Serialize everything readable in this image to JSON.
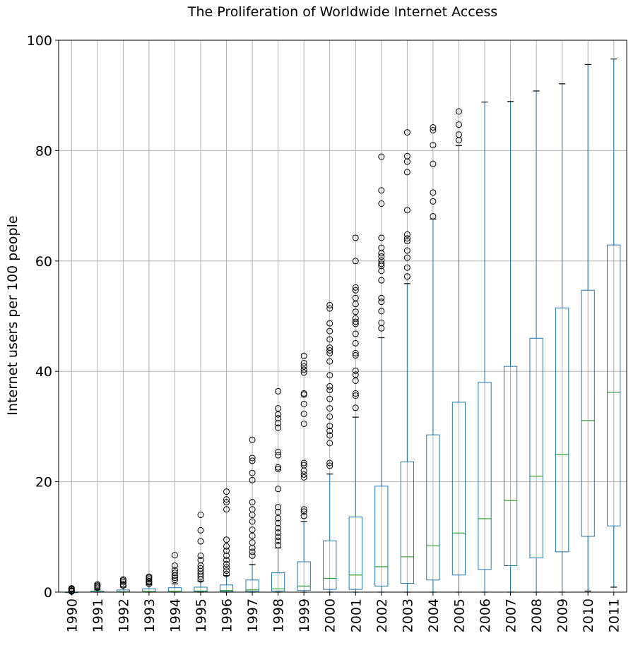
{
  "chart_data": {
    "type": "box",
    "title": "The Proliferation of Worldwide Internet Access",
    "xlabel": "",
    "ylabel": "Internet users per 100 people",
    "ylim": [
      0,
      100
    ],
    "yticks": [
      0,
      20,
      40,
      60,
      80,
      100
    ],
    "grid": true,
    "colors": {
      "box": "#1f77b4",
      "median": "#2ca02c",
      "grid": "#b0b0b0",
      "outlier": "#000000"
    },
    "categories": [
      "1990",
      "1991",
      "1992",
      "1993",
      "1994",
      "1995",
      "1996",
      "1997",
      "1998",
      "1999",
      "2000",
      "2001",
      "2002",
      "2003",
      "2004",
      "2005",
      "2006",
      "2007",
      "2008",
      "2009",
      "2010",
      "2011"
    ],
    "boxes": [
      {
        "q1": 0,
        "median": 0,
        "q3": 0,
        "whislo": 0,
        "whishi": 0,
        "fliers": [
          0.1,
          0.2,
          0.3,
          0.5,
          0.6,
          0.7
        ]
      },
      {
        "q1": 0,
        "median": 0.02,
        "q3": 0.2,
        "whislo": 0,
        "whishi": 0.4,
        "fliers": [
          0.8,
          1.0,
          1.2,
          1.4
        ]
      },
      {
        "q1": 0,
        "median": 0.05,
        "q3": 0.4,
        "whislo": 0,
        "whishi": 0.9,
        "fliers": [
          1.2,
          1.4,
          1.8,
          2.1,
          2.3
        ]
      },
      {
        "q1": 0,
        "median": 0.1,
        "q3": 0.6,
        "whislo": 0,
        "whishi": 1.3,
        "fliers": [
          1.5,
          1.8,
          2.0,
          2.3,
          2.6,
          2.8
        ]
      },
      {
        "q1": 0,
        "median": 0.15,
        "q3": 0.8,
        "whislo": 0,
        "whishi": 1.5,
        "fliers": [
          2.2,
          2.6,
          3.0,
          3.5,
          4.0,
          4.8,
          6.7
        ]
      },
      {
        "q1": 0.05,
        "median": 0.2,
        "q3": 0.9,
        "whislo": 0,
        "whishi": 2.0,
        "fliers": [
          2.3,
          2.8,
          3.3,
          3.8,
          4.3,
          4.8,
          5.8,
          6.6,
          9.2,
          11.2,
          14.0
        ]
      },
      {
        "q1": 0.1,
        "median": 0.3,
        "q3": 1.3,
        "whislo": 0,
        "whishi": 3.0,
        "fliers": [
          3.3,
          3.9,
          4.5,
          5.1,
          5.8,
          6.6,
          7.5,
          8.3,
          9.5,
          15.0,
          16.3,
          16.8,
          18.2
        ]
      },
      {
        "q1": 0.1,
        "median": 0.4,
        "q3": 2.2,
        "whislo": 0,
        "whishi": 5.0,
        "fliers": [
          6.6,
          7.3,
          8.0,
          9.0,
          10.2,
          11.3,
          12.8,
          14.0,
          15.0,
          16.3,
          20.3,
          21.6,
          23.8,
          24.3,
          27.6
        ]
      },
      {
        "q1": 0.2,
        "median": 0.6,
        "q3": 3.5,
        "whislo": 0,
        "whishi": 8.0,
        "fliers": [
          8.5,
          9.3,
          10.0,
          10.8,
          11.6,
          12.5,
          13.4,
          14.5,
          15.4,
          18.7,
          22.3,
          22.6,
          24.8,
          25.4,
          29.8,
          30.6,
          31.5,
          32.2,
          33.3,
          36.4
        ]
      },
      {
        "q1": 0.3,
        "median": 1.1,
        "q3": 5.5,
        "whislo": 0,
        "whishi": 12.8,
        "fliers": [
          13.8,
          14.6,
          15.0,
          20.8,
          21.3,
          22.0,
          23.0,
          23.4,
          30.5,
          32.3,
          34.1,
          35.8,
          36.0,
          39.8,
          40.3,
          40.9,
          41.5,
          42.8
        ]
      },
      {
        "q1": 0.5,
        "median": 2.5,
        "q3": 9.3,
        "whislo": 0,
        "whishi": 21.4,
        "fliers": [
          22.9,
          23.4,
          27.0,
          28.4,
          29.2,
          30.1,
          31.8,
          33.3,
          35.0,
          36.6,
          37.3,
          39.3,
          41.8,
          43.3,
          43.8,
          44.3,
          45.8,
          47.3,
          48.7,
          51.4,
          52.0
        ]
      },
      {
        "q1": 0.5,
        "median": 3.1,
        "q3": 13.6,
        "whislo": 0,
        "whishi": 31.7,
        "fliers": [
          33.4,
          35.6,
          36.0,
          38.3,
          39.4,
          40.1,
          42.9,
          43.3,
          45.1,
          46.8,
          48.6,
          49.0,
          49.6,
          50.8,
          52.2,
          53.3,
          54.7,
          55.2,
          60.0,
          64.2
        ]
      },
      {
        "q1": 1.1,
        "median": 4.6,
        "q3": 19.2,
        "whislo": 0,
        "whishi": 46.1,
        "fliers": [
          47.8,
          48.8,
          50.9,
          52.6,
          53.3,
          56.5,
          58.2,
          59.1,
          59.5,
          60.1,
          60.8,
          61.4,
          62.4,
          64.2,
          70.4,
          72.8,
          78.9
        ]
      },
      {
        "q1": 1.6,
        "median": 6.4,
        "q3": 23.6,
        "whislo": 0,
        "whishi": 55.9,
        "fliers": [
          57.2,
          58.8,
          60.6,
          61.9,
          63.6,
          64.1,
          64.8,
          69.2,
          76.1,
          78.0,
          79.0,
          83.3
        ]
      },
      {
        "q1": 2.2,
        "median": 8.4,
        "q3": 28.5,
        "whislo": 0,
        "whishi": 67.6,
        "fliers": [
          68.1,
          70.8,
          72.4,
          77.6,
          81.0,
          83.7,
          84.2
        ]
      },
      {
        "q1": 3.1,
        "median": 10.7,
        "q3": 34.4,
        "whislo": 0,
        "whishi": 80.9,
        "fliers": [
          81.9,
          82.9,
          84.7,
          87.1
        ]
      },
      {
        "q1": 4.1,
        "median": 13.3,
        "q3": 38.0,
        "whislo": 0,
        "whishi": 88.8,
        "fliers": []
      },
      {
        "q1": 4.8,
        "median": 16.6,
        "q3": 40.9,
        "whislo": 0,
        "whishi": 88.9,
        "fliers": []
      },
      {
        "q1": 6.2,
        "median": 21.0,
        "q3": 46.0,
        "whislo": 0,
        "whishi": 90.8,
        "fliers": []
      },
      {
        "q1": 7.3,
        "median": 24.9,
        "q3": 51.5,
        "whislo": 0,
        "whishi": 92.1,
        "fliers": []
      },
      {
        "q1": 10.1,
        "median": 31.1,
        "q3": 54.7,
        "whislo": 0.2,
        "whishi": 95.6,
        "fliers": []
      },
      {
        "q1": 12.0,
        "median": 36.2,
        "q3": 62.9,
        "whislo": 0.9,
        "whishi": 96.6,
        "fliers": []
      }
    ]
  }
}
